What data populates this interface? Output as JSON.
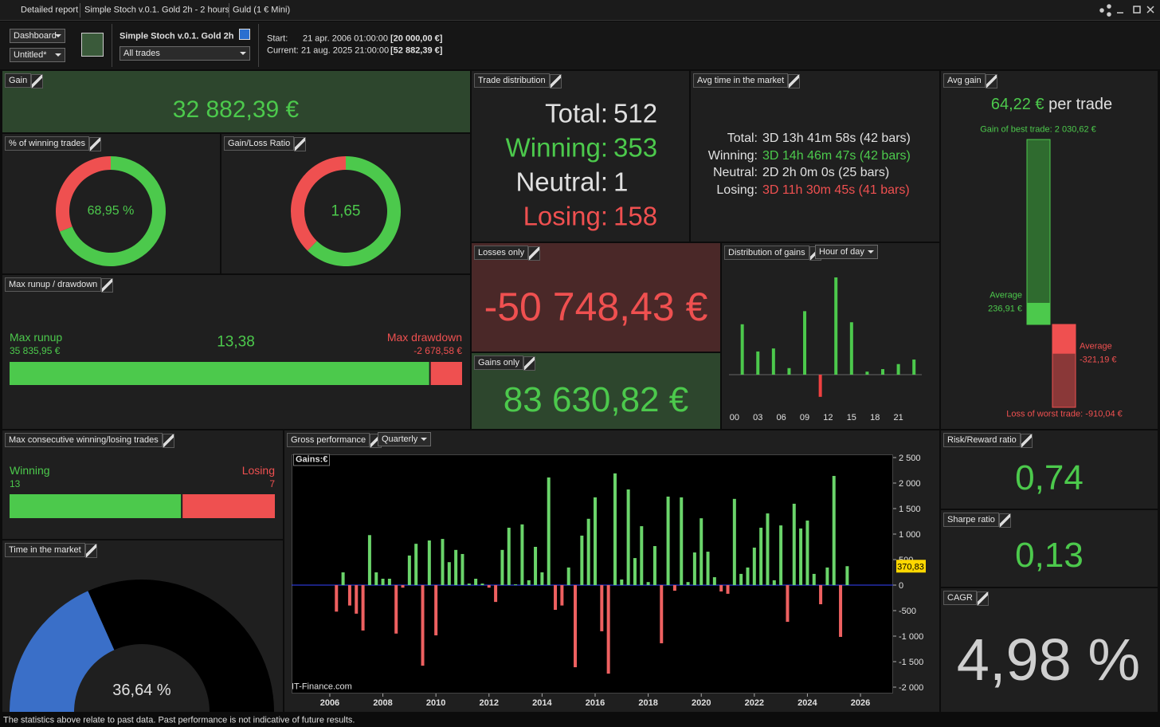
{
  "titlebar": {
    "tabs": [
      "Detailed report",
      "Simple Stoch v.0.1. Gold 2h - 2 hours",
      "Guld (1 € Mini)"
    ]
  },
  "toolbar": {
    "view": "Dashboard",
    "layout": "Untitled*",
    "strategy": "Simple Stoch v.0.1. Gold 2h",
    "filter": "All trades",
    "start_label": "Start:",
    "start_date": "21 apr. 2006 01:00:00",
    "start_capital": "[20 000,00 €]",
    "current_label": "Current:",
    "current_date": "21 aug. 2025 21:00:00",
    "current_capital": "[52 882,39 €]"
  },
  "gain": {
    "title": "Gain",
    "value": "32 882,39 €"
  },
  "winning_trades": {
    "title": "% of winning trades",
    "value": 68.95,
    "value_label": "68,95 %",
    "color": "#4cc94c",
    "rest_color": "#ef5050"
  },
  "gain_loss_ratio": {
    "title": "Gain/Loss Ratio",
    "value": 1.65,
    "value_label": "1,65",
    "color": "#4cc94c",
    "rest_color": "#ef5050"
  },
  "trade_distribution": {
    "title": "Trade distribution",
    "rows": [
      {
        "label": "Total:",
        "value": 512,
        "color": "#e0e0e0"
      },
      {
        "label": "Winning:",
        "value": 353,
        "color": "#4cc94c"
      },
      {
        "label": "Neutral:",
        "value": 1,
        "color": "#e0e0e0"
      },
      {
        "label": "Losing:",
        "value": 158,
        "color": "#ef5050"
      }
    ]
  },
  "avg_time": {
    "title": "Avg time in the market",
    "rows": [
      {
        "label": "Total:",
        "value": "3D 13h 41m 58s (42 bars)",
        "color": "#e0e0e0"
      },
      {
        "label": "Winning:",
        "value": "3D 14h 46m 47s (42 bars)",
        "color": "#4cc94c"
      },
      {
        "label": "Neutral:",
        "value": "2D 2h 0m 0s (25 bars)",
        "color": "#e0e0e0"
      },
      {
        "label": "Losing:",
        "value": "3D 11h 30m 45s (41 bars)",
        "color": "#ef5050"
      }
    ]
  },
  "losses_only": {
    "title": "Losses only",
    "value": "-50 748,43 €"
  },
  "gains_only": {
    "title": "Gains only",
    "value": "83 630,82 €"
  },
  "distribution_of_gains": {
    "title": "Distribution of gains",
    "selector": "Hour of day",
    "type": "bar",
    "x": [
      1,
      3,
      5,
      7,
      9,
      11,
      13,
      15,
      17,
      19,
      21,
      23
    ],
    "values": [
      5000,
      2300,
      2600,
      650,
      6300,
      -2200,
      9650,
      5200,
      300,
      550,
      1050,
      1500
    ],
    "xlim": [
      -0.7,
      24
    ],
    "xticks": [
      {
        "value": 0,
        "label": "00"
      },
      {
        "value": 3,
        "label": "03"
      },
      {
        "value": 6,
        "label": "06"
      },
      {
        "value": 9,
        "label": "09"
      },
      {
        "value": 12,
        "label": "12"
      },
      {
        "value": 15,
        "label": "15"
      },
      {
        "value": 18,
        "label": "18"
      },
      {
        "value": 21,
        "label": "21"
      }
    ],
    "color": "#4cc94c",
    "negative_color": "#ef4040"
  },
  "avg_gain": {
    "title": "Avg gain",
    "value": "64,22 €",
    "unit": "per trade",
    "best": {
      "label": "Gain of best trade:",
      "value": 2030.62,
      "value_label": "2 030,62 €"
    },
    "average_gain": {
      "label": "Average",
      "value": 236.91,
      "value_label": "236,91 €"
    },
    "average_loss": {
      "label": "Average",
      "value": -321.19,
      "value_label": "-321,19 €"
    },
    "worst": {
      "label": "Loss of worst trade:",
      "value": -910.04,
      "value_label": "-910,04 €"
    }
  },
  "max_runup_drawdown": {
    "title": "Max runup / drawdown",
    "ratio": "13,38",
    "runup": {
      "label": "Max runup",
      "value": 35835.95,
      "value_label": "35 835,95 €"
    },
    "drawdown": {
      "label": "Max drawdown",
      "value": -2678.58,
      "value_label": "-2 678,58 €"
    }
  },
  "max_consecutive": {
    "title": "Max consecutive winning/losing trades",
    "winning": {
      "label": "Winning",
      "value": 13
    },
    "losing": {
      "label": "Losing",
      "value": 7
    }
  },
  "time_in_market": {
    "title": "Time in the market",
    "value": 36.64,
    "value_label": "36,64 %",
    "color": "#3a6fc8"
  },
  "gross_performance": {
    "title": "Gross performance",
    "selector": "Quarterly",
    "legend": "Gains:€",
    "type": "bar",
    "watermark": "IT-Finance.com",
    "last_value_label": "370,83",
    "x": [
      2006.25,
      2006.5,
      2006.75,
      2007,
      2007.25,
      2007.5,
      2007.75,
      2008,
      2008.25,
      2008.5,
      2008.75,
      2009,
      2009.25,
      2009.5,
      2009.75,
      2010,
      2010.25,
      2010.5,
      2010.75,
      2011,
      2011.25,
      2011.5,
      2011.75,
      2012,
      2012.25,
      2012.5,
      2012.75,
      2013,
      2013.25,
      2013.5,
      2013.75,
      2014,
      2014.25,
      2014.5,
      2014.75,
      2015,
      2015.25,
      2015.5,
      2015.75,
      2016,
      2016.25,
      2016.5,
      2016.75,
      2017,
      2017.25,
      2017.5,
      2017.75,
      2018,
      2018.25,
      2018.5,
      2018.75,
      2019,
      2019.25,
      2019.5,
      2019.75,
      2020,
      2020.25,
      2020.5,
      2020.75,
      2021,
      2021.25,
      2021.5,
      2021.75,
      2022,
      2022.25,
      2022.5,
      2022.75,
      2023,
      2023.25,
      2023.5,
      2023.75,
      2024,
      2024.25,
      2024.5,
      2024.75,
      2025,
      2025.25,
      2025.5
    ],
    "values": [
      -520,
      250,
      -400,
      -560,
      -890,
      980,
      250,
      125,
      125,
      -950,
      -50,
      580,
      810,
      -1580,
      875,
      -985,
      905,
      450,
      690,
      610,
      30,
      125,
      30,
      -50,
      -330,
      690,
      1125,
      15,
      1190,
      95,
      750,
      250,
      2110,
      -485,
      -400,
      345,
      -1610,
      970,
      1300,
      1720,
      -905,
      -1735,
      2190,
      110,
      1875,
      530,
      1155,
      60,
      765,
      -1140,
      1735,
      -110,
      1720,
      60,
      640,
      1310,
      655,
      155,
      -125,
      -170,
      1690,
      220,
      345,
      735,
      1125,
      1405,
      95,
      1170,
      -720,
      1595,
      1110,
      1265,
      220,
      -375,
      345,
      2140,
      -1015,
      370.83
    ],
    "xlim": [
      2004.56,
      2027.23
    ],
    "xticks": [
      2006,
      2008,
      2010,
      2012,
      2014,
      2016,
      2018,
      2020,
      2022,
      2024,
      2026
    ],
    "ylim": [
      -2125,
      2562.5
    ],
    "yticks": [
      {
        "value": 2500,
        "label": "2 500"
      },
      {
        "value": 2000,
        "label": "2 000"
      },
      {
        "value": 1500,
        "label": "1 500"
      },
      {
        "value": 1000,
        "label": "1 000"
      },
      {
        "value": 500,
        "label": "500"
      },
      0,
      {
        "value": -500,
        "label": "-500"
      },
      {
        "value": -1000,
        "label": "-1 000"
      },
      {
        "value": -1500,
        "label": "-1 500"
      },
      {
        "value": -2000,
        "label": "-2 000"
      }
    ],
    "color": "#6ad46a",
    "negative_color": "#ee6060",
    "zero_line_color": "#3344ff"
  },
  "risk_reward": {
    "title": "Risk/Reward ratio",
    "value": "0,74"
  },
  "sharpe": {
    "title": "Sharpe ratio",
    "value": "0,13"
  },
  "cagr": {
    "title": "CAGR",
    "value": "4,98 %"
  },
  "footer": "The statistics above relate to past data. Past performance is not indicative of future results."
}
